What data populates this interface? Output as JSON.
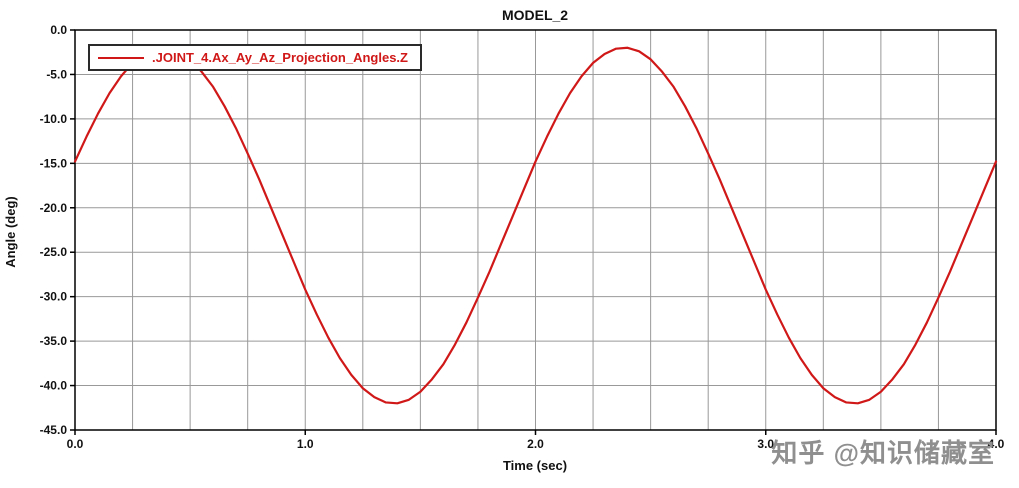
{
  "title": "MODEL_2",
  "legend": {
    "label": ".JOINT_4.Ax_Ay_Az_Projection_Angles.Z"
  },
  "watermark": "知乎 @知识储藏室",
  "colors": {
    "series": "#d01818",
    "grid": "#999999",
    "frame": "#000000",
    "legend_text": "#d01818",
    "watermark": "#8f8f8f",
    "background": "#ffffff"
  },
  "chart_data": {
    "type": "line",
    "title": "MODEL_2",
    "xlabel": "Time (sec)",
    "ylabel": "Angle (deg)",
    "xlim": [
      0,
      4
    ],
    "ylim": [
      -45,
      0
    ],
    "grid": true,
    "legend_position": "top-left",
    "x_minor_step": 0.25,
    "x_ticks": [
      0,
      1,
      2,
      3,
      4
    ],
    "x_tick_labels": [
      "0.0",
      "1.0",
      "2.0",
      "3.0",
      "4.0"
    ],
    "y_ticks": [
      0,
      -5,
      -10,
      -15,
      -20,
      -25,
      -30,
      -35,
      -40,
      -45
    ],
    "y_tick_labels": [
      "0.0",
      "-5.0",
      "-10.0",
      "-15.0",
      "-20.0",
      "-25.0",
      "-30.0",
      "-35.0",
      "-40.0",
      "-45.0"
    ],
    "series": [
      {
        "name": ".JOINT_4.Ax_Ay_Az_Projection_Angles.Z",
        "color": "#d01818",
        "x_start": 0,
        "x_step": 0.05,
        "y": [
          -14.8,
          -12.0,
          -9.4,
          -7.1,
          -5.2,
          -3.7,
          -2.7,
          -2.1,
          -2.0,
          -2.4,
          -3.3,
          -4.7,
          -6.4,
          -8.6,
          -11.1,
          -13.9,
          -16.8,
          -19.9,
          -23.0,
          -26.1,
          -29.2,
          -32.0,
          -34.6,
          -36.9,
          -38.8,
          -40.3,
          -41.3,
          -41.9,
          -42.0,
          -41.6,
          -40.7,
          -39.3,
          -37.6,
          -35.4,
          -32.9,
          -30.1,
          -27.2,
          -24.1,
          -21.0,
          -17.9,
          -14.8,
          -12.0,
          -9.4,
          -7.1,
          -5.2,
          -3.7,
          -2.7,
          -2.1,
          -2.0,
          -2.4,
          -3.3,
          -4.7,
          -6.4,
          -8.6,
          -11.1,
          -13.9,
          -16.8,
          -19.9,
          -23.0,
          -26.1,
          -29.2,
          -32.0,
          -34.6,
          -36.9,
          -38.8,
          -40.3,
          -41.3,
          -41.9,
          -42.0,
          -41.6,
          -40.7,
          -39.3,
          -37.6,
          -35.4,
          -32.9,
          -30.1,
          -27.2,
          -24.1,
          -21.0,
          -17.9,
          -14.8
        ]
      }
    ]
  }
}
